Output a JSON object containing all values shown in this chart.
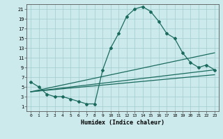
{
  "xlabel": "Humidex (Indice chaleur)",
  "xlim": [
    -0.5,
    23.5
  ],
  "ylim": [
    0,
    22
  ],
  "xticks": [
    0,
    1,
    2,
    3,
    4,
    5,
    6,
    7,
    8,
    9,
    10,
    11,
    12,
    13,
    14,
    15,
    16,
    17,
    18,
    19,
    20,
    21,
    22,
    23
  ],
  "yticks": [
    1,
    3,
    5,
    7,
    9,
    11,
    13,
    15,
    17,
    19,
    21
  ],
  "bg_color": "#cce9ec",
  "line_color": "#1a6b5e",
  "grid_color": "#a0cdd0",
  "line1_x": [
    0,
    1,
    2,
    3,
    4,
    5,
    6,
    7,
    8,
    9,
    10,
    11,
    12,
    13,
    14,
    15,
    16,
    17,
    18,
    19,
    20,
    21,
    22,
    23
  ],
  "line1_y": [
    6,
    5,
    3.5,
    3,
    3,
    2.5,
    2,
    1.5,
    1.5,
    8.5,
    13,
    16,
    19.5,
    21,
    21.5,
    20.5,
    18.5,
    16,
    15,
    12,
    10,
    9,
    9.5,
    8.5
  ],
  "line2_x": [
    0,
    23
  ],
  "line2_y": [
    4,
    12
  ],
  "line3_x": [
    0,
    23
  ],
  "line3_y": [
    4,
    8.5
  ],
  "line4_x": [
    0,
    23
  ],
  "line4_y": [
    4,
    7.5
  ],
  "marker": "D",
  "markersize": 2.0,
  "linewidth": 0.9
}
